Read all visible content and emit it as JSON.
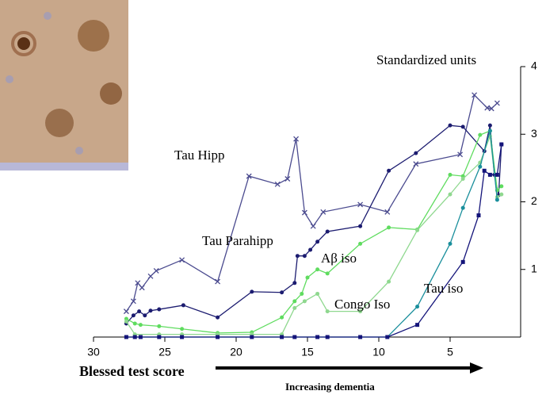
{
  "chart_data": {
    "type": "line",
    "y_label": "Standardized units",
    "x_label": "Blessed test score",
    "annotation": "Increasing dementia",
    "xlim": [
      30,
      0
    ],
    "xticks": [
      30,
      25,
      20,
      15,
      10,
      5
    ],
    "ylim": [
      0,
      4
    ],
    "yticks": [
      1,
      2,
      3,
      4
    ],
    "series": [
      {
        "name": "Tau Hipp",
        "color": "#4b4b8f",
        "marker": "x",
        "x": [
          27.7,
          27.2,
          26.9,
          26.6,
          26.0,
          25.6,
          23.8,
          21.3,
          19.1,
          17.1,
          16.4,
          15.8,
          15.2,
          14.6,
          13.9,
          11.3,
          9.4,
          7.4,
          4.3,
          3.3,
          2.4,
          2.1,
          1.7
        ],
        "values": [
          0.38,
          0.53,
          0.8,
          0.73,
          0.9,
          0.98,
          1.14,
          0.82,
          2.38,
          2.26,
          2.34,
          2.93,
          1.84,
          1.64,
          1.85,
          1.96,
          1.85,
          2.56,
          2.7,
          3.58,
          3.39,
          3.38,
          3.46
        ]
      },
      {
        "name": "Tau Parahipp",
        "color": "#1c1c70",
        "marker": "dot",
        "x": [
          27.7,
          27.2,
          26.8,
          26.4,
          26.0,
          25.4,
          23.7,
          21.3,
          18.9,
          16.8,
          15.9,
          15.7,
          15.2,
          14.8,
          14.3,
          13.6,
          11.3,
          9.3,
          7.4,
          5.0,
          4.1,
          2.6,
          2.2,
          1.9,
          1.6,
          1.4
        ],
        "values": [
          0.2,
          0.32,
          0.38,
          0.32,
          0.39,
          0.41,
          0.47,
          0.29,
          0.67,
          0.66,
          0.8,
          1.2,
          1.2,
          1.29,
          1.41,
          1.56,
          1.64,
          2.46,
          2.72,
          3.13,
          3.11,
          2.75,
          3.13,
          2.4,
          2.1,
          2.85
        ]
      },
      {
        "name": "Aβ iso",
        "color": "#5fdc5f",
        "marker": "dot",
        "x": [
          27.7,
          27.1,
          26.7,
          25.4,
          23.8,
          21.3,
          18.9,
          16.8,
          15.9,
          15.4,
          15.0,
          14.3,
          13.6,
          11.3,
          9.3,
          7.3,
          5.0,
          4.1,
          2.9,
          2.2,
          1.7,
          1.4
        ],
        "values": [
          0.27,
          0.2,
          0.18,
          0.16,
          0.12,
          0.06,
          0.07,
          0.29,
          0.53,
          0.64,
          0.88,
          1.0,
          0.94,
          1.38,
          1.62,
          1.59,
          2.4,
          2.38,
          2.99,
          3.05,
          2.17,
          2.23
        ]
      },
      {
        "name": "Congo Iso",
        "color": "#8fd88f",
        "marker": "dot",
        "x": [
          27.7,
          27.1,
          25.4,
          23.8,
          21.3,
          18.9,
          16.8,
          15.9,
          15.2,
          14.3,
          13.6,
          11.3,
          9.3,
          7.3,
          5.0,
          4.1,
          2.9,
          2.2,
          1.7,
          1.4
        ],
        "values": [
          0.23,
          0.04,
          0.04,
          0.04,
          0.04,
          0.04,
          0.04,
          0.43,
          0.53,
          0.64,
          0.38,
          0.38,
          0.82,
          1.58,
          2.11,
          2.34,
          2.58,
          2.97,
          2.07,
          2.11
        ]
      },
      {
        "color": "#1a8f9c",
        "marker": "dot",
        "x": [
          27.7,
          25.4,
          21.3,
          16.8,
          13.6,
          9.4,
          7.3,
          5.0,
          4.1,
          2.9,
          2.2,
          1.7
        ],
        "values": [
          0,
          0,
          0,
          0,
          0,
          0,
          0.45,
          1.38,
          1.91,
          2.52,
          3.05,
          2.03
        ]
      },
      {
        "name": "Tau iso",
        "color": "#14147a",
        "marker": "square",
        "x": [
          27.7,
          27.1,
          26.7,
          25.4,
          23.8,
          21.3,
          18.9,
          16.8,
          15.9,
          14.3,
          13.6,
          11.3,
          9.4,
          7.3,
          4.1,
          3.0,
          2.6,
          2.2,
          1.7,
          1.4
        ],
        "values": [
          0,
          0,
          0,
          0,
          0,
          0,
          0,
          0,
          0,
          0,
          0,
          0,
          0,
          0.18,
          1.11,
          1.8,
          2.46,
          2.4,
          2.4,
          2.85
        ]
      }
    ]
  }
}
